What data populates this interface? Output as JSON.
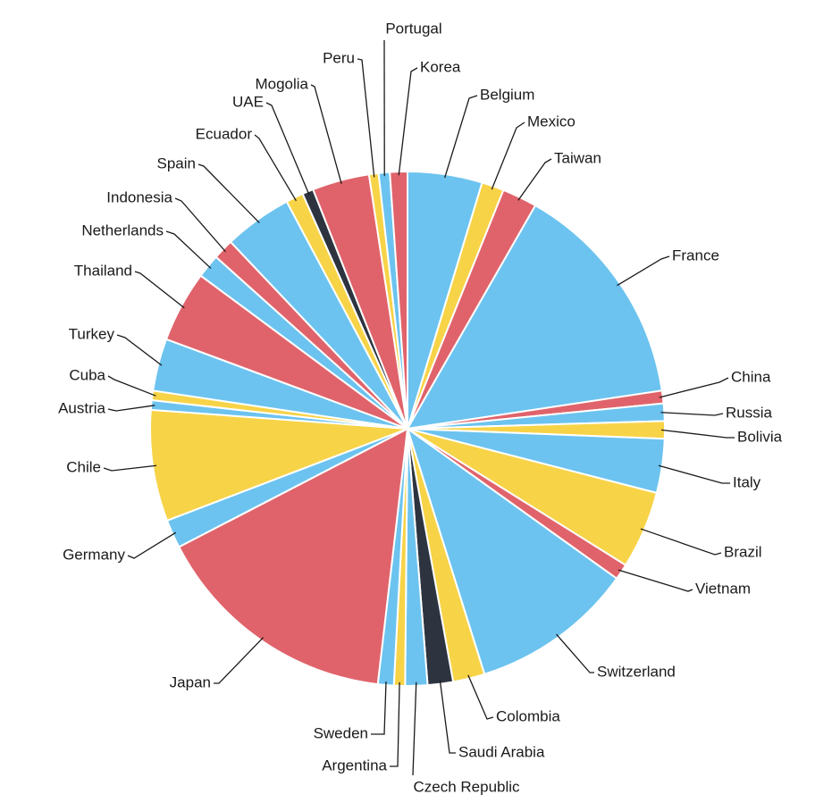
{
  "chart_data": {
    "type": "pie",
    "categories": [
      "Belgium",
      "Mexico",
      "Taiwan",
      "France",
      "China",
      "Russia",
      "Bolivia",
      "Italy",
      "Brazil",
      "Vietnam",
      "Switzerland",
      "Colombia",
      "Saudi Arabia",
      "Czech Republic",
      "Argentina",
      "Sweden",
      "Japan",
      "Germany",
      "Chile",
      "Austria",
      "Cuba",
      "Turkey",
      "Thailand",
      "Netherlands",
      "Indonesia",
      "Spain",
      "Ecuador",
      "UAE",
      "Mogolia",
      "Peru",
      "Portugal",
      "Korea"
    ],
    "values": [
      4.7,
      1.4,
      2.2,
      14.4,
      0.8,
      1.1,
      1.1,
      3.4,
      4.9,
      1.0,
      10.3,
      2.0,
      1.6,
      1.4,
      0.7,
      1.0,
      15.6,
      1.8,
      7.0,
      0.6,
      0.6,
      3.3,
      4.5,
      1.5,
      1.3,
      4.3,
      1.1,
      0.7,
      3.6,
      0.6,
      0.7,
      1.1
    ],
    "colors": [
      "#6cc3ef",
      "#f7d347",
      "#e0636b",
      "#6cc3ef",
      "#e0636b",
      "#6cc3ef",
      "#f7d347",
      "#6cc3ef",
      "#f7d347",
      "#e0636b",
      "#6cc3ef",
      "#f7d347",
      "#2d3440",
      "#6cc3ef",
      "#f7d347",
      "#6cc3ef",
      "#e0636b",
      "#6cc3ef",
      "#f7d347",
      "#6cc3ef",
      "#f7d347",
      "#6cc3ef",
      "#e0636b",
      "#6cc3ef",
      "#e0636b",
      "#6cc3ef",
      "#f7d347",
      "#2d3440",
      "#e0636b",
      "#f7d347",
      "#6cc3ef",
      "#e0636b"
    ]
  }
}
